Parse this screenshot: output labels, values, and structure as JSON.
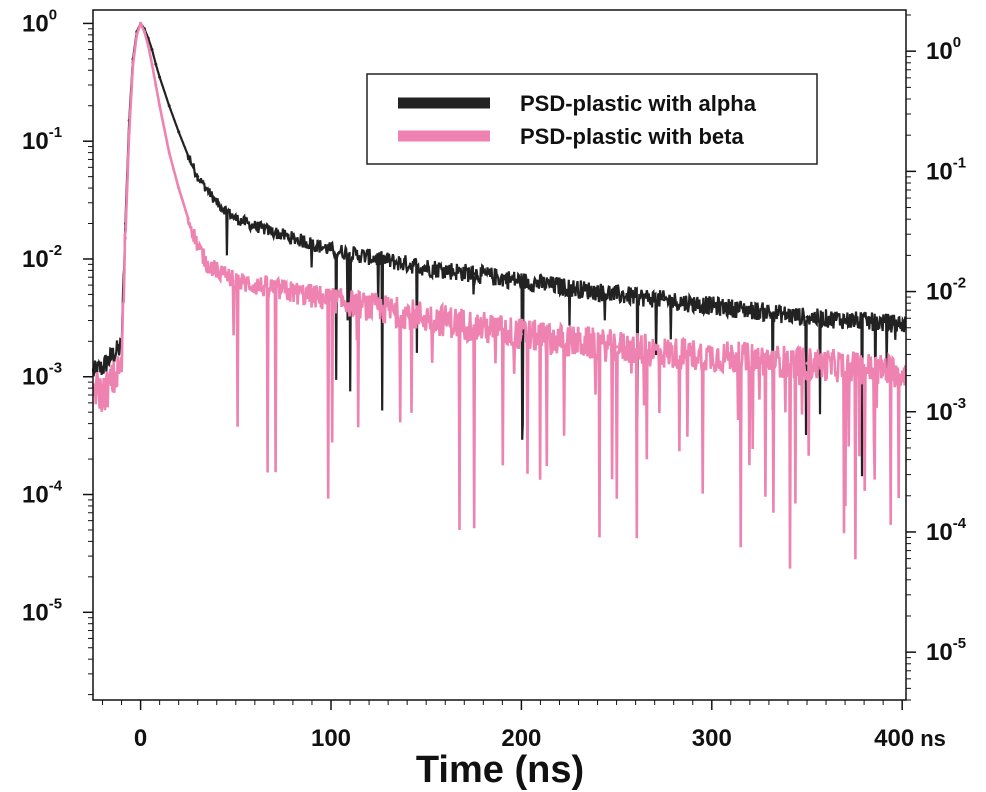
{
  "chart_data": {
    "type": "line",
    "xlabel": "Time (ns)",
    "x_unit": "ns",
    "xlim": [
      -25,
      402
    ],
    "x_ticks": [
      {
        "value": 0,
        "label": "0"
      },
      {
        "value": 100,
        "label": "100"
      },
      {
        "value": 200,
        "label": "200"
      },
      {
        "value": 300,
        "label": "300"
      },
      {
        "value": 400,
        "label": "400"
      }
    ],
    "y_scale": "log",
    "ylim_left": [
      1.8e-06,
      1.3
    ],
    "ylim_right": [
      4e-06,
      2.2
    ],
    "y_ticks_left": [
      {
        "value": 1,
        "base": "10",
        "exp": "0"
      },
      {
        "value": 0.1,
        "base": "10",
        "exp": "-1"
      },
      {
        "value": 0.01,
        "base": "10",
        "exp": "-2"
      },
      {
        "value": 0.001,
        "base": "10",
        "exp": "-3"
      },
      {
        "value": 0.0001,
        "base": "10",
        "exp": "-4"
      },
      {
        "value": 1e-05,
        "base": "10",
        "exp": "-5"
      }
    ],
    "y_ticks_right": [
      {
        "value": 1,
        "base": "10",
        "exp": "0"
      },
      {
        "value": 0.1,
        "base": "10",
        "exp": "-1"
      },
      {
        "value": 0.01,
        "base": "10",
        "exp": "-2"
      },
      {
        "value": 0.001,
        "base": "10",
        "exp": "-3"
      },
      {
        "value": 0.0001,
        "base": "10",
        "exp": "-4"
      },
      {
        "value": 1e-05,
        "base": "10",
        "exp": "-5"
      }
    ],
    "legend_position": "top-right",
    "grid": false,
    "series": [
      {
        "name": "PSD-plastic with alpha",
        "color": "#222222",
        "x": [
          -24,
          -20,
          -15,
          -10,
          -8,
          -6,
          -4,
          -2,
          0,
          2,
          4,
          6,
          8,
          10,
          15,
          20,
          25,
          30,
          40,
          50,
          60,
          80,
          100,
          125,
          150,
          175,
          200,
          225,
          250,
          275,
          300,
          325,
          350,
          375,
          400
        ],
        "y": [
          0.0011,
          0.0012,
          0.0015,
          0.0018,
          0.02,
          0.15,
          0.5,
          0.85,
          1.0,
          0.9,
          0.75,
          0.6,
          0.45,
          0.35,
          0.2,
          0.12,
          0.075,
          0.05,
          0.03,
          0.022,
          0.019,
          0.015,
          0.012,
          0.01,
          0.0085,
          0.0075,
          0.0065,
          0.0057,
          0.005,
          0.0045,
          0.004,
          0.0036,
          0.0032,
          0.003,
          0.0028
        ]
      },
      {
        "name": "PSD-plastic with beta",
        "color": "#ee82b0",
        "x": [
          -24,
          -20,
          -15,
          -10,
          -8,
          -6,
          -4,
          -2,
          0,
          2,
          4,
          6,
          8,
          10,
          15,
          20,
          25,
          30,
          35,
          40,
          50,
          60,
          80,
          100,
          125,
          150,
          175,
          200,
          225,
          250,
          275,
          300,
          325,
          350,
          375,
          400
        ],
        "y": [
          0.0008,
          0.0007,
          0.0009,
          0.0012,
          0.015,
          0.12,
          0.45,
          0.8,
          1.0,
          0.85,
          0.65,
          0.45,
          0.3,
          0.2,
          0.08,
          0.04,
          0.022,
          0.013,
          0.009,
          0.008,
          0.0065,
          0.006,
          0.0052,
          0.0045,
          0.0038,
          0.0032,
          0.0027,
          0.0023,
          0.002,
          0.0018,
          0.0016,
          0.0015,
          0.0014,
          0.0013,
          0.0012,
          0.0011
        ]
      }
    ]
  }
}
